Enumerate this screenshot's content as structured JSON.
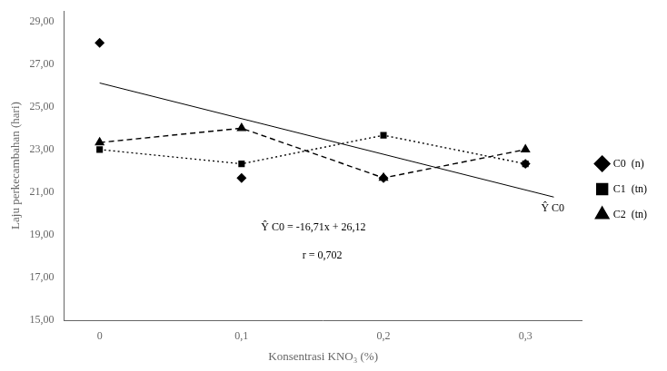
{
  "chart_data": {
    "type": "line",
    "x": [
      0,
      0.1,
      0.2,
      0.3
    ],
    "series": [
      {
        "name": "C0  (n)",
        "color": "#000000",
        "marker": "diamond",
        "line_style": "none",
        "values": [
          28.0,
          21.67,
          21.67,
          22.33
        ]
      },
      {
        "name": "C1  (tn)",
        "color": "#000000",
        "marker": "square",
        "line_style": "dotted",
        "values": [
          23.0,
          22.33,
          23.67,
          22.33
        ]
      },
      {
        "name": "C2  (tn)",
        "color": "#000000",
        "marker": "triangle",
        "line_style": "dashed",
        "values": [
          23.33,
          24.0,
          21.67,
          23.0
        ]
      },
      {
        "color": "#000000",
        "marker": "none",
        "line_style": "solid",
        "x": [
          0,
          0.32
        ],
        "values": [
          26.12,
          20.7728
        ]
      }
    ],
    "x_label": "Konsentrasi KNO₃ (%)",
    "y_label": "Laju perkecambahan (hari)",
    "xlim": [
      -0.025,
      0.34
    ],
    "xticks": [
      0,
      {
        "value": 0.1,
        "label": "0,1"
      },
      {
        "value": 0.2,
        "label": "0,2"
      },
      {
        "value": 0.3,
        "label": "0,3"
      }
    ],
    "ylim": [
      15.0,
      29.5
    ],
    "yticks": [
      {
        "value": 15.0,
        "label": "15,00"
      },
      {
        "value": 17.0,
        "label": "17,00"
      },
      {
        "value": 19.0,
        "label": "19,00"
      },
      {
        "value": 21.0,
        "label": "21,00"
      },
      {
        "value": 23.0,
        "label": "23,00"
      },
      {
        "value": 25.0,
        "label": "25,00"
      },
      {
        "value": 27.0,
        "label": "27,00"
      },
      {
        "value": 29.0,
        "label": "29,00"
      }
    ],
    "annotations": [
      "Ŷ C0",
      "Ŷ C0 = -16,71x + 26,12",
      "r = 0,702"
    ],
    "grid": false,
    "legend": "right"
  }
}
